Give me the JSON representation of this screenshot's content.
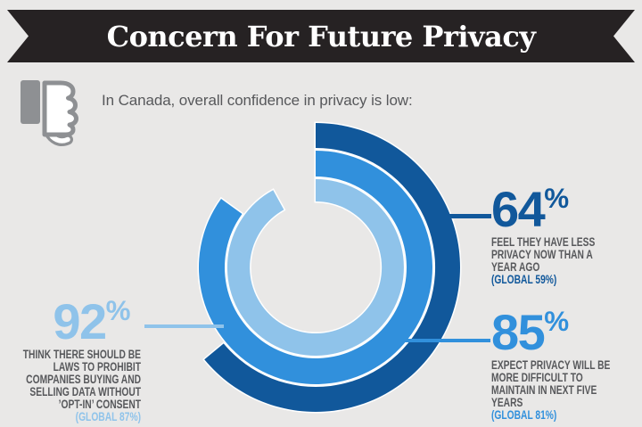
{
  "banner": {
    "title": "Concern For Future Privacy"
  },
  "intro": {
    "text": "In Canada, overall confidence in privacy is low:",
    "icon": "thumbs-down-icon"
  },
  "colors": {
    "background": "#E9E8E7",
    "banner": "#262223",
    "title_text": "#FFFFFF",
    "dark_blue": "#11589B",
    "medium_blue": "#3190DC",
    "light_blue": "#8FC3EA",
    "gray_text": "#57585B",
    "icon_gray": "#8E9093",
    "separator_white": "#FFFFFF"
  },
  "chart_data": {
    "type": "pie",
    "subtype": "concentric-donut-rings",
    "unit": "%",
    "start_angle_deg": 0,
    "direction": "clockwise",
    "series": [
      {
        "name": "Feel they have less privacy now than a year ago",
        "canada_pct": 64,
        "global_pct": 59,
        "ring": "outer",
        "color_key": "dark_blue"
      },
      {
        "name": "Expect privacy will be more difficult to maintain in next five years",
        "canada_pct": 85,
        "global_pct": 81,
        "ring": "middle",
        "color_key": "medium_blue"
      },
      {
        "name": "Think there should be laws to prohibit companies buying and selling data without opt-in consent",
        "canada_pct": 92,
        "global_pct": 87,
        "ring": "inner",
        "color_key": "light_blue"
      }
    ]
  },
  "callouts": {
    "c64": {
      "value": "64",
      "pct_sign": "%",
      "lines": [
        "FEEL THEY HAVE LESS",
        "PRIVACY NOW THAN A",
        "YEAR AGO"
      ],
      "global": "(GLOBAL 59%)"
    },
    "c85": {
      "value": "85",
      "pct_sign": "%",
      "lines": [
        "EXPECT PRIVACY WILL BE",
        "MORE DIFFICULT TO",
        "MAINTAIN IN NEXT FIVE",
        "YEARS"
      ],
      "global": "(GLOBAL 81%)"
    },
    "c92": {
      "value": "92",
      "pct_sign": "%",
      "lines": [
        "THINK THERE SHOULD BE",
        "LAWS TO PROHIBIT",
        "COMPANIES BUYING AND",
        "SELLING DATA WITHOUT",
        "’OPT-IN’ CONSENT"
      ],
      "global": "(GLOBAL 87%)"
    }
  }
}
